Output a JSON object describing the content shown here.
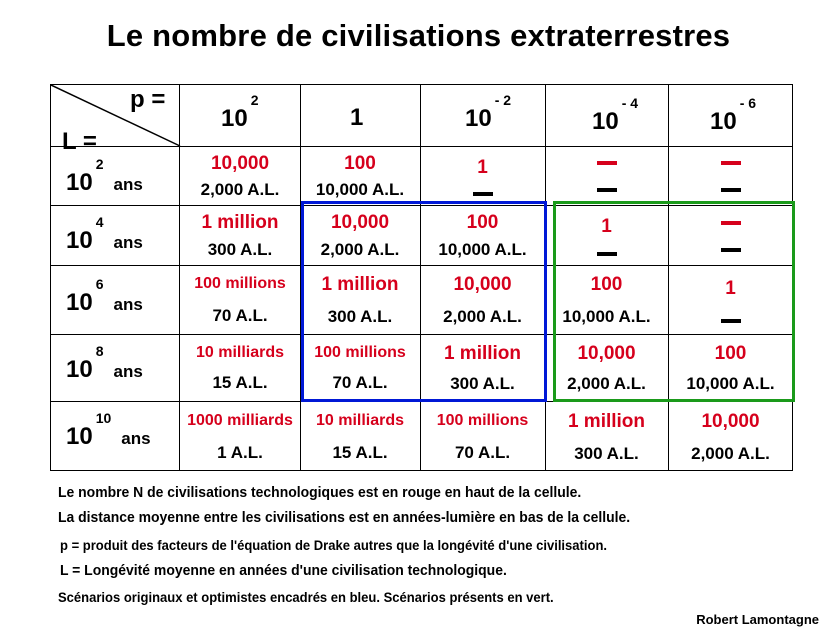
{
  "title": "Le nombre de civilisations extraterrestres",
  "corner": {
    "p_label": "p =",
    "l_label": "L ="
  },
  "columns": [
    {
      "base": "10",
      "exp": "2"
    },
    {
      "base": "1",
      "exp": ""
    },
    {
      "base": "10",
      "exp": "- 2"
    },
    {
      "base": "10",
      "exp": "- 4"
    },
    {
      "base": "10",
      "exp": "- 6"
    }
  ],
  "rows": [
    {
      "base": "10",
      "exp": "2",
      "unit": "ans",
      "cells": [
        {
          "n": "10,000",
          "d": "2,000 A.L."
        },
        {
          "n": "100",
          "d": "10,000 A.L."
        },
        {
          "n": "1",
          "d": ""
        },
        {
          "n": "",
          "d": ""
        },
        {
          "n": "",
          "d": ""
        }
      ]
    },
    {
      "base": "10",
      "exp": "4",
      "unit": "ans",
      "cells": [
        {
          "n": "1 million",
          "d": "300 A.L."
        },
        {
          "n": "10,000",
          "d": "2,000 A.L."
        },
        {
          "n": "100",
          "d": "10,000 A.L."
        },
        {
          "n": "1",
          "d": ""
        },
        {
          "n": "",
          "d": ""
        }
      ]
    },
    {
      "base": "10",
      "exp": "6",
      "unit": "ans",
      "cells": [
        {
          "n": "100 millions",
          "d": "70 A.L."
        },
        {
          "n": "1 million",
          "d": "300 A.L."
        },
        {
          "n": "10,000",
          "d": "2,000 A.L."
        },
        {
          "n": "100",
          "d": "10,000 A.L."
        },
        {
          "n": "1",
          "d": ""
        }
      ]
    },
    {
      "base": "10",
      "exp": "8",
      "unit": "ans",
      "cells": [
        {
          "n": "10 milliards",
          "d": "15 A.L."
        },
        {
          "n": "100 millions",
          "d": "70 A.L."
        },
        {
          "n": "1 million",
          "d": "300 A.L."
        },
        {
          "n": "10,000",
          "d": "2,000 A.L."
        },
        {
          "n": "100",
          "d": "10,000 A.L."
        }
      ]
    },
    {
      "base": "10",
      "exp": "10",
      "unit": "ans",
      "cells": [
        {
          "n": "1000 milliards",
          "d": "1 A.L."
        },
        {
          "n": "10 milliards",
          "d": "15 A.L."
        },
        {
          "n": "100 millions",
          "d": "70 A.L."
        },
        {
          "n": "1 million",
          "d": "300 A.L."
        },
        {
          "n": "10,000",
          "d": "2,000 A.L."
        }
      ]
    }
  ],
  "notes": [
    "Le nombre N de civilisations technologiques est en rouge en haut de la cellule.",
    "La distance moyenne entre les civilisations est en années-lumière en bas de la cellule.",
    "p = produit des facteurs de l'équation de Drake autres que la longévité d'une civilisation.",
    "L = Longévité moyenne en années d'une civilisation technologique.",
    "Scénarios originaux et optimistes encadrés en bleu. Scénarios présents en vert."
  ],
  "signature": "Robert Lamontagne",
  "colors": {
    "number": "#d6001c",
    "blue_box": "#0018d6",
    "green_box": "#1a9a1a"
  }
}
